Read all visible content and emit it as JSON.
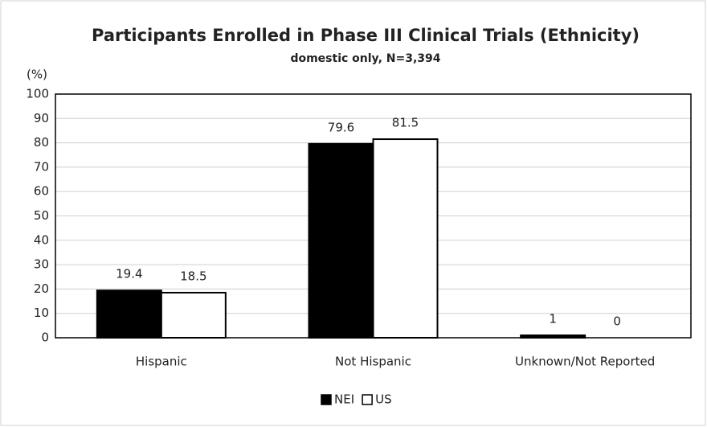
{
  "chart_data": {
    "type": "bar",
    "title": "Participants Enrolled in Phase III Clinical Trials (Ethnicity)",
    "subtitle": "domestic only, N=3,394",
    "y_label": "(%)",
    "categories": [
      "Hispanic",
      "Not Hispanic",
      "Unknown/Not Reported"
    ],
    "series": [
      {
        "name": "NEI",
        "color": "#000000",
        "values": [
          19.4,
          79.6,
          1
        ]
      },
      {
        "name": "US",
        "color": "#ffffff",
        "values": [
          18.5,
          81.5,
          0
        ]
      }
    ],
    "ylim": [
      0,
      100
    ],
    "yticks": [
      0,
      10,
      20,
      30,
      40,
      50,
      60,
      70,
      80,
      90,
      100
    ],
    "grid": true,
    "legend": "bottom"
  }
}
